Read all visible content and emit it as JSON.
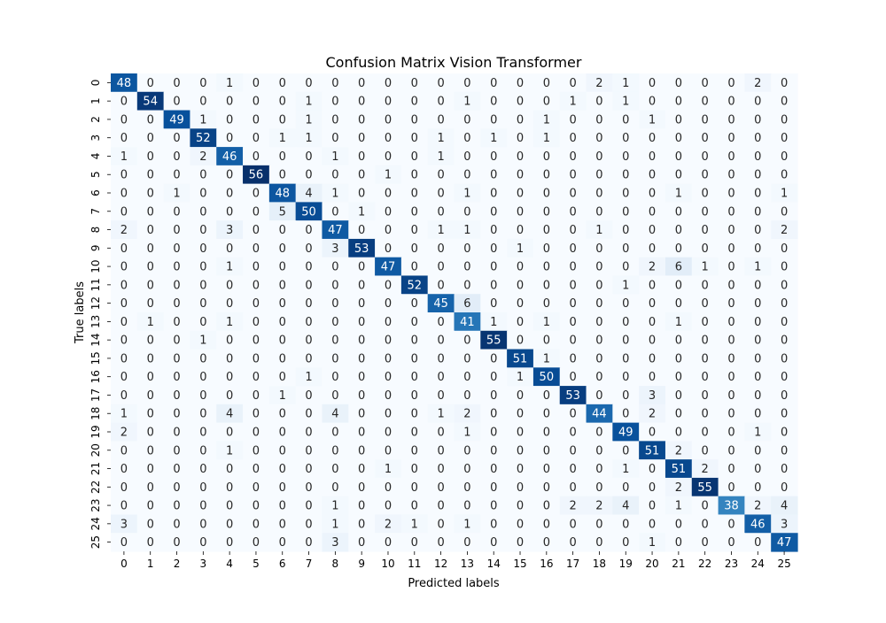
{
  "chart_data": {
    "type": "heatmap",
    "title": "Confusion Matrix Vision Transformer",
    "xlabel": "Predicted labels",
    "ylabel": "True labels",
    "colormap": "Blues",
    "colorbar": false,
    "x_tick_labels": [
      "0",
      "1",
      "2",
      "3",
      "4",
      "5",
      "6",
      "7",
      "8",
      "9",
      "10",
      "11",
      "12",
      "13",
      "14",
      "15",
      "16",
      "17",
      "18",
      "19",
      "20",
      "21",
      "22",
      "23",
      "24",
      "25"
    ],
    "y_tick_labels": [
      "0",
      "1",
      "2",
      "3",
      "4",
      "5",
      "6",
      "7",
      "8",
      "9",
      "10",
      "11",
      "12",
      "13",
      "14",
      "15",
      "16",
      "17",
      "18",
      "19",
      "20",
      "21",
      "22",
      "23",
      "24",
      "25"
    ],
    "value_range": [
      0,
      56
    ],
    "matrix": [
      [
        48,
        0,
        0,
        0,
        1,
        0,
        0,
        0,
        0,
        0,
        0,
        0,
        0,
        0,
        0,
        0,
        0,
        0,
        2,
        1,
        0,
        0,
        0,
        0,
        2,
        0
      ],
      [
        0,
        54,
        0,
        0,
        0,
        0,
        0,
        1,
        0,
        0,
        0,
        0,
        0,
        1,
        0,
        0,
        0,
        1,
        0,
        1,
        0,
        0,
        0,
        0,
        0,
        0
      ],
      [
        0,
        0,
        49,
        1,
        0,
        0,
        0,
        1,
        0,
        0,
        0,
        0,
        0,
        0,
        0,
        0,
        1,
        0,
        0,
        0,
        1,
        0,
        0,
        0,
        0,
        0
      ],
      [
        0,
        0,
        0,
        52,
        0,
        0,
        1,
        1,
        0,
        0,
        0,
        0,
        1,
        0,
        1,
        0,
        1,
        0,
        0,
        0,
        0,
        0,
        0,
        0,
        0,
        0
      ],
      [
        1,
        0,
        0,
        2,
        46,
        0,
        0,
        0,
        1,
        0,
        0,
        0,
        1,
        0,
        0,
        0,
        0,
        0,
        0,
        0,
        0,
        0,
        0,
        0,
        0,
        0
      ],
      [
        0,
        0,
        0,
        0,
        0,
        56,
        0,
        0,
        0,
        0,
        1,
        0,
        0,
        0,
        0,
        0,
        0,
        0,
        0,
        0,
        0,
        0,
        0,
        0,
        0,
        0
      ],
      [
        0,
        0,
        1,
        0,
        0,
        0,
        48,
        4,
        1,
        0,
        0,
        0,
        0,
        1,
        0,
        0,
        0,
        0,
        0,
        0,
        0,
        1,
        0,
        0,
        0,
        1
      ],
      [
        0,
        0,
        0,
        0,
        0,
        0,
        5,
        50,
        0,
        1,
        0,
        0,
        0,
        0,
        0,
        0,
        0,
        0,
        0,
        0,
        0,
        0,
        0,
        0,
        0,
        0
      ],
      [
        2,
        0,
        0,
        0,
        3,
        0,
        0,
        0,
        47,
        0,
        0,
        0,
        1,
        1,
        0,
        0,
        0,
        0,
        1,
        0,
        0,
        0,
        0,
        0,
        0,
        2
      ],
      [
        0,
        0,
        0,
        0,
        0,
        0,
        0,
        0,
        3,
        53,
        0,
        0,
        0,
        0,
        0,
        1,
        0,
        0,
        0,
        0,
        0,
        0,
        0,
        0,
        0,
        0
      ],
      [
        0,
        0,
        0,
        0,
        1,
        0,
        0,
        0,
        0,
        0,
        47,
        0,
        0,
        0,
        0,
        0,
        0,
        0,
        0,
        0,
        2,
        6,
        1,
        0,
        1,
        0
      ],
      [
        0,
        0,
        0,
        0,
        0,
        0,
        0,
        0,
        0,
        0,
        0,
        52,
        0,
        0,
        0,
        0,
        0,
        0,
        0,
        1,
        0,
        0,
        0,
        0,
        0,
        0
      ],
      [
        0,
        0,
        0,
        0,
        0,
        0,
        0,
        0,
        0,
        0,
        0,
        0,
        45,
        6,
        0,
        0,
        0,
        0,
        0,
        0,
        0,
        0,
        0,
        0,
        0,
        0
      ],
      [
        0,
        1,
        0,
        0,
        1,
        0,
        0,
        0,
        0,
        0,
        0,
        0,
        0,
        41,
        1,
        0,
        1,
        0,
        0,
        0,
        0,
        1,
        0,
        0,
        0,
        0
      ],
      [
        0,
        0,
        0,
        1,
        0,
        0,
        0,
        0,
        0,
        0,
        0,
        0,
        0,
        0,
        55,
        0,
        0,
        0,
        0,
        0,
        0,
        0,
        0,
        0,
        0,
        0
      ],
      [
        0,
        0,
        0,
        0,
        0,
        0,
        0,
        0,
        0,
        0,
        0,
        0,
        0,
        0,
        0,
        51,
        1,
        0,
        0,
        0,
        0,
        0,
        0,
        0,
        0,
        0
      ],
      [
        0,
        0,
        0,
        0,
        0,
        0,
        0,
        1,
        0,
        0,
        0,
        0,
        0,
        0,
        0,
        1,
        50,
        0,
        0,
        0,
        0,
        0,
        0,
        0,
        0,
        0
      ],
      [
        0,
        0,
        0,
        0,
        0,
        0,
        1,
        0,
        0,
        0,
        0,
        0,
        0,
        0,
        0,
        0,
        0,
        53,
        0,
        0,
        3,
        0,
        0,
        0,
        0,
        0
      ],
      [
        1,
        0,
        0,
        0,
        4,
        0,
        0,
        0,
        4,
        0,
        0,
        0,
        1,
        2,
        0,
        0,
        0,
        0,
        44,
        0,
        2,
        0,
        0,
        0,
        0,
        0
      ],
      [
        2,
        0,
        0,
        0,
        0,
        0,
        0,
        0,
        0,
        0,
        0,
        0,
        0,
        1,
        0,
        0,
        0,
        0,
        0,
        49,
        0,
        0,
        0,
        0,
        1,
        0
      ],
      [
        0,
        0,
        0,
        0,
        1,
        0,
        0,
        0,
        0,
        0,
        0,
        0,
        0,
        0,
        0,
        0,
        0,
        0,
        0,
        0,
        51,
        2,
        0,
        0,
        0,
        0
      ],
      [
        0,
        0,
        0,
        0,
        0,
        0,
        0,
        0,
        0,
        0,
        1,
        0,
        0,
        0,
        0,
        0,
        0,
        0,
        0,
        1,
        0,
        51,
        2,
        0,
        0,
        0
      ],
      [
        0,
        0,
        0,
        0,
        0,
        0,
        0,
        0,
        0,
        0,
        0,
        0,
        0,
        0,
        0,
        0,
        0,
        0,
        0,
        0,
        0,
        2,
        55,
        0,
        0,
        0
      ],
      [
        0,
        0,
        0,
        0,
        0,
        0,
        0,
        0,
        1,
        0,
        0,
        0,
        0,
        0,
        0,
        0,
        0,
        2,
        2,
        4,
        0,
        1,
        0,
        38,
        2,
        4
      ],
      [
        3,
        0,
        0,
        0,
        0,
        0,
        0,
        0,
        1,
        0,
        2,
        1,
        0,
        1,
        0,
        0,
        0,
        0,
        0,
        0,
        0,
        0,
        0,
        0,
        46,
        3
      ],
      [
        0,
        0,
        0,
        0,
        0,
        0,
        0,
        0,
        3,
        0,
        0,
        0,
        0,
        0,
        0,
        0,
        0,
        0,
        0,
        0,
        1,
        0,
        0,
        0,
        0,
        47
      ]
    ]
  }
}
